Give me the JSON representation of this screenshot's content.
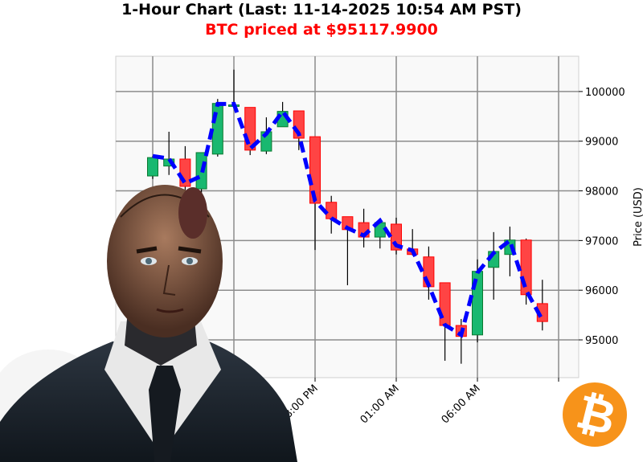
{
  "chart_data": {
    "type": "candlestick",
    "title": "1-Hour Chart (Last: 11-14-2025 10:54 AM PST)",
    "subtitle": "BTC priced at $95117.9900",
    "xlabel": "",
    "ylabel": "Price (USD)",
    "ylim": [
      94240,
      100710
    ],
    "yticks": [
      95000,
      96000,
      97000,
      98000,
      99000,
      100000
    ],
    "xtick_labels": [
      "",
      "",
      "08:00 PM",
      "01:00 AM",
      "06:00 AM",
      ""
    ],
    "grid": true,
    "colors": {
      "up": "#19b870",
      "down": "#ff4444",
      "line": "#0000ff",
      "background": "#f9f9f9",
      "grid": "#8c8c8c"
    },
    "candles": [
      {
        "o": 98300,
        "h": 98700,
        "l": 98240,
        "c": 98670
      },
      {
        "o": 98500,
        "h": 99190,
        "l": 98320,
        "c": 98640
      },
      {
        "o": 98640,
        "h": 98900,
        "l": 97950,
        "c": 98090
      },
      {
        "o": 98040,
        "h": 98770,
        "l": 97950,
        "c": 98770
      },
      {
        "o": 98740,
        "h": 99850,
        "l": 98690,
        "c": 99760
      },
      {
        "o": 99700,
        "h": 100440,
        "l": 99690,
        "c": 99730
      },
      {
        "o": 99680,
        "h": 99680,
        "l": 98720,
        "c": 98820
      },
      {
        "o": 98800,
        "h": 99480,
        "l": 98740,
        "c": 99190
      },
      {
        "o": 99290,
        "h": 99790,
        "l": 99290,
        "c": 99600
      },
      {
        "o": 99610,
        "h": 99610,
        "l": 98820,
        "c": 99060
      },
      {
        "o": 99090,
        "h": 99090,
        "l": 96810,
        "c": 97750
      },
      {
        "o": 97770,
        "h": 97900,
        "l": 97140,
        "c": 97440
      },
      {
        "o": 97480,
        "h": 97480,
        "l": 96100,
        "c": 97220
      },
      {
        "o": 97360,
        "h": 97640,
        "l": 96860,
        "c": 97070
      },
      {
        "o": 97070,
        "h": 97360,
        "l": 96840,
        "c": 97360
      },
      {
        "o": 97330,
        "h": 97460,
        "l": 96720,
        "c": 96810
      },
      {
        "o": 96830,
        "h": 97230,
        "l": 96700,
        "c": 96720
      },
      {
        "o": 96670,
        "h": 96880,
        "l": 95810,
        "c": 96070
      },
      {
        "o": 96150,
        "h": 96150,
        "l": 94580,
        "c": 95290
      },
      {
        "o": 95290,
        "h": 95420,
        "l": 94520,
        "c": 95070
      },
      {
        "o": 95100,
        "h": 96620,
        "l": 94950,
        "c": 96380
      },
      {
        "o": 96460,
        "h": 97170,
        "l": 95810,
        "c": 96780
      },
      {
        "o": 96720,
        "h": 97280,
        "l": 96280,
        "c": 97010
      },
      {
        "o": 97010,
        "h": 97040,
        "l": 95710,
        "c": 95910
      },
      {
        "o": 95730,
        "h": 96210,
        "l": 95190,
        "c": 95370
      }
    ],
    "line_values": [
      98700,
      98650,
      98150,
      98300,
      99750,
      99750,
      98850,
      99150,
      99600,
      99150,
      97800,
      97450,
      97250,
      97100,
      97400,
      96900,
      96800,
      96100,
      95300,
      95100,
      96350,
      96750,
      97000,
      96000,
      95400
    ]
  },
  "logo": {
    "text": "₿",
    "color": "#f7931a"
  }
}
